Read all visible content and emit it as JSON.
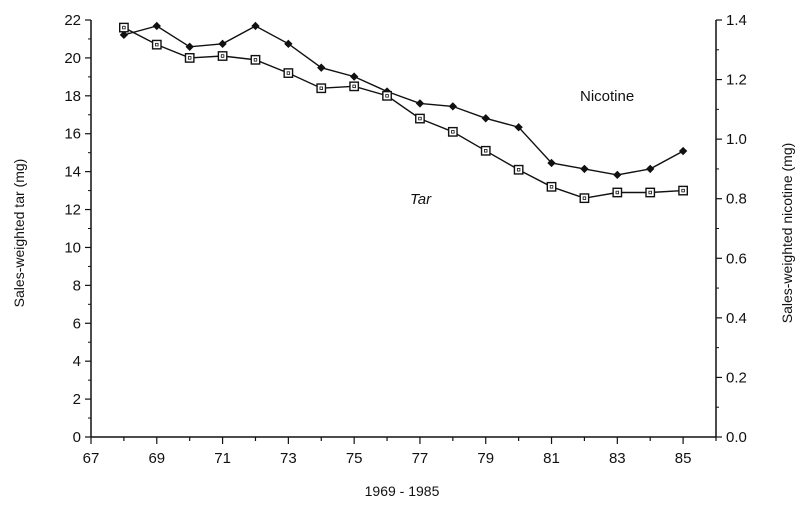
{
  "chart_data": {
    "type": "line",
    "title": "",
    "xlabel": "1969 - 1985",
    "ylabel_left": "Sales-weighted tar (mg)",
    "ylabel_right": "Sales-weighted nicotine (mg)",
    "xlim": [
      67,
      86
    ],
    "x_ticks": [
      "67",
      "69",
      "71",
      "73",
      "75",
      "77",
      "79",
      "81",
      "83",
      "85"
    ],
    "ylim_left": [
      0,
      22
    ],
    "y_ticks_left": [
      "0",
      "2",
      "4",
      "6",
      "8",
      "10",
      "12",
      "14",
      "16",
      "18",
      "20",
      "22"
    ],
    "ylim_right": [
      0.0,
      1.4
    ],
    "y_ticks_right": [
      "0.0",
      "0.2",
      "0.4",
      "0.6",
      "0.8",
      "1.0",
      "1.2",
      "1.4"
    ],
    "x": [
      68,
      69,
      70,
      71,
      72,
      73,
      74,
      75,
      76,
      77,
      78,
      79,
      80,
      81,
      82,
      83,
      84,
      85
    ],
    "series": [
      {
        "name": "Nicotine",
        "axis": "right",
        "marker": "diamond-filled",
        "values": [
          1.35,
          1.38,
          1.31,
          1.32,
          1.38,
          1.32,
          1.24,
          1.21,
          1.16,
          1.12,
          1.11,
          1.07,
          1.04,
          0.92,
          0.9,
          0.88,
          0.9,
          0.96
        ]
      },
      {
        "name": "Tar",
        "axis": "left",
        "marker": "square-open",
        "values": [
          21.6,
          20.7,
          20.0,
          20.1,
          19.9,
          19.2,
          18.4,
          18.5,
          18.0,
          16.8,
          16.1,
          15.1,
          14.1,
          13.2,
          12.6,
          12.9,
          12.9,
          13.0
        ]
      }
    ],
    "grid": false,
    "legend": "inline labels"
  }
}
